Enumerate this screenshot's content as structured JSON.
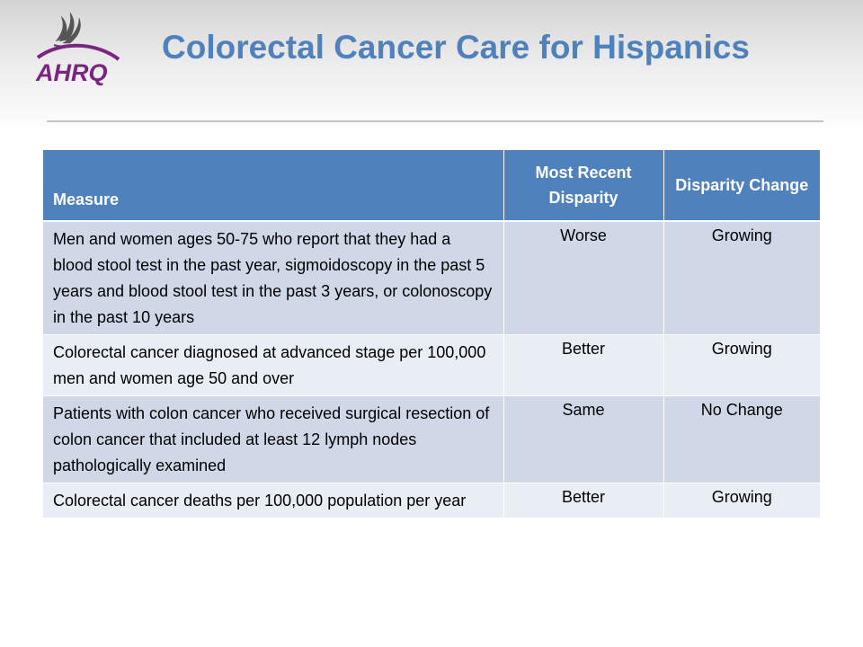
{
  "logo": {
    "text": "AHRQ"
  },
  "title": "Colorectal Cancer Care for Hispanics",
  "table": {
    "headers": [
      "Measure",
      "Most Recent Disparity",
      "Disparity Change"
    ],
    "rows": [
      [
        "Men and women ages 50-75 who report that they had a blood stool test in the past year, sigmoidoscopy in the past 5 years and blood stool test in the past 3 years, or colonoscopy in the past 10 years",
        "Worse",
        "Growing"
      ],
      [
        "Colorectal cancer diagnosed at advanced stage per 100,000 men and women age 50 and over",
        "Better",
        "Growing"
      ],
      [
        "Patients with colon cancer who received surgical resection of colon cancer that included at least 12 lymph nodes pathologically examined",
        "Same",
        "No Change"
      ],
      [
        "Colorectal cancer deaths per 100,000 population per year",
        "Better",
        "Growing"
      ]
    ]
  },
  "colors": {
    "title": "#4f81bd",
    "header_bg": "#4f81bd",
    "row_odd": "#d0d8e8",
    "row_even": "#e9edf4",
    "logo_purple": "#7b2582"
  }
}
